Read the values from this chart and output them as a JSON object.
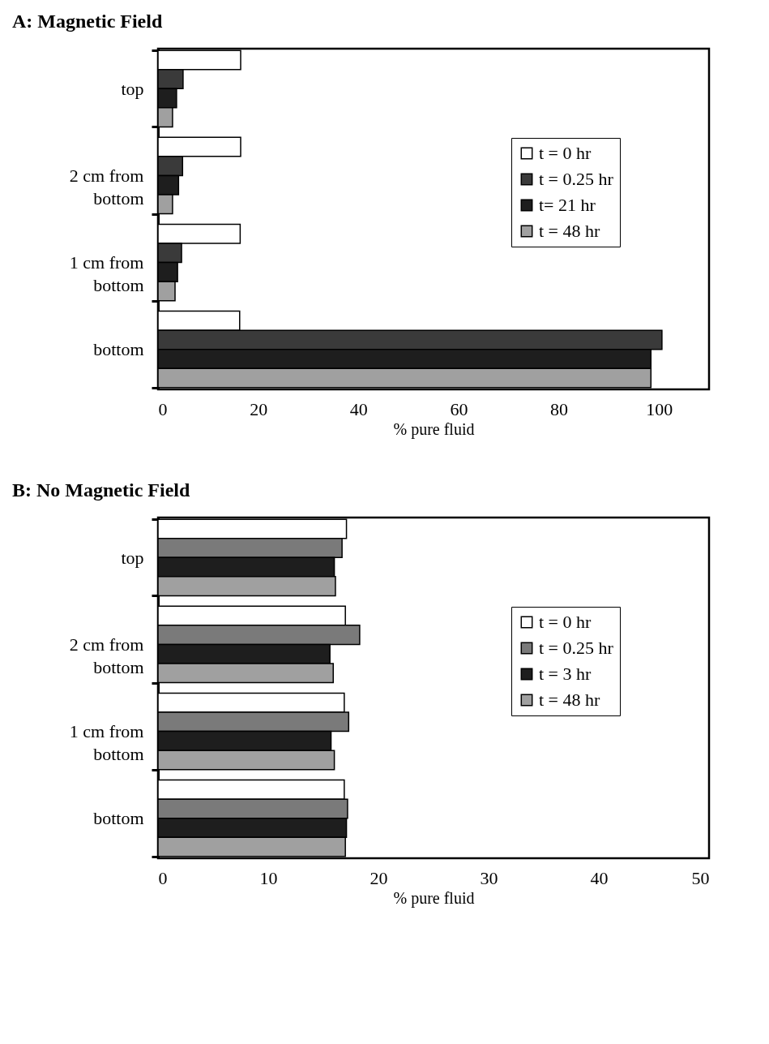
{
  "chart_data": [
    {
      "type": "bar",
      "orientation": "horizontal",
      "title": "A: Magnetic Field",
      "xlabel": "% pure fluid",
      "categories": [
        "top",
        "2 cm from bottom",
        "1 cm from bottom",
        "bottom"
      ],
      "xlim": [
        0,
        110
      ],
      "xticks": [
        0,
        20,
        40,
        60,
        80,
        100
      ],
      "legend": "top right",
      "series": [
        {
          "name": "t = 0 hr",
          "color": "#ffffff",
          "values": [
            16.5,
            16.5,
            16.4,
            16.3
          ]
        },
        {
          "name": "t = 0.25 hr",
          "color": "#3a3a3a",
          "values": [
            5.0,
            4.9,
            4.7,
            100.6
          ]
        },
        {
          "name": "t= 21 hr",
          "color": "#1e1e1e",
          "values": [
            3.7,
            4.1,
            3.9,
            98.4
          ]
        },
        {
          "name": "t = 48 hr",
          "color": "#a0a0a0",
          "values": [
            2.9,
            2.9,
            3.4,
            98.4
          ]
        }
      ]
    },
    {
      "type": "bar",
      "orientation": "horizontal",
      "title": "B: No Magnetic Field",
      "xlabel": "% pure fluid",
      "categories": [
        "top",
        "2 cm from bottom",
        "1 cm from bottom",
        "bottom"
      ],
      "xlim": [
        0,
        50
      ],
      "xticks": [
        0,
        10,
        20,
        30,
        40,
        50
      ],
      "legend": "top right",
      "series": [
        {
          "name": "t = 0 hr",
          "color": "#ffffff",
          "values": [
            17.1,
            17.0,
            16.9,
            16.9
          ]
        },
        {
          "name": "t = 0.25 hr",
          "color": "#7a7a7a",
          "values": [
            16.7,
            18.3,
            17.3,
            17.2
          ]
        },
        {
          "name": "t = 3 hr",
          "color": "#1e1e1e",
          "values": [
            16.0,
            15.6,
            15.7,
            17.1
          ]
        },
        {
          "name": "t = 48 hr",
          "color": "#a0a0a0",
          "values": [
            16.1,
            15.9,
            16.0,
            17.0
          ]
        }
      ]
    }
  ]
}
